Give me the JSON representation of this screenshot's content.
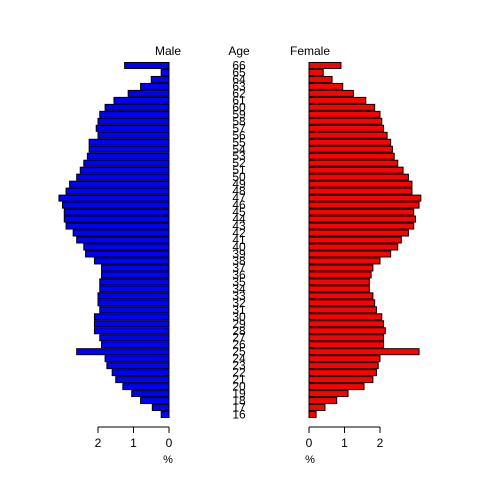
{
  "chart_data": {
    "type": "bar",
    "orientation": "horizontal",
    "left_header": "Male",
    "center_header": "Age",
    "right_header": "Female",
    "unit_label": "%",
    "xlim": [
      0,
      3
    ],
    "male_ticks": [
      2,
      1,
      0
    ],
    "female_ticks": [
      0,
      1,
      2
    ],
    "categories": [
      16,
      17,
      18,
      19,
      20,
      21,
      22,
      23,
      24,
      25,
      26,
      27,
      28,
      29,
      30,
      31,
      32,
      33,
      34,
      35,
      36,
      37,
      38,
      39,
      40,
      41,
      42,
      43,
      44,
      45,
      46,
      47,
      48,
      49,
      50,
      51,
      52,
      53,
      54,
      55,
      56,
      57,
      58,
      59,
      60,
      61,
      62,
      63,
      64,
      65,
      66
    ],
    "series": [
      {
        "name": "Male",
        "color": "#0000ff",
        "values": [
          0.22,
          0.47,
          0.8,
          1.05,
          1.3,
          1.5,
          1.6,
          1.75,
          1.8,
          2.6,
          1.9,
          1.95,
          2.1,
          2.1,
          2.1,
          1.95,
          2.0,
          2.0,
          1.95,
          1.95,
          1.9,
          1.9,
          2.1,
          2.35,
          2.4,
          2.6,
          2.7,
          2.9,
          2.95,
          2.95,
          3.0,
          3.1,
          2.9,
          2.8,
          2.6,
          2.5,
          2.4,
          2.3,
          2.25,
          2.25,
          2.0,
          2.05,
          2.0,
          1.95,
          1.8,
          1.55,
          1.15,
          0.8,
          0.5,
          0.22,
          1.25
        ]
      },
      {
        "name": "Female",
        "color": "#ff0000",
        "values": [
          0.2,
          0.45,
          0.78,
          1.1,
          1.55,
          1.8,
          1.9,
          1.95,
          2.0,
          3.1,
          2.1,
          2.1,
          2.15,
          2.1,
          2.05,
          1.9,
          1.85,
          1.8,
          1.7,
          1.7,
          1.75,
          1.8,
          2.0,
          2.3,
          2.5,
          2.6,
          2.8,
          2.95,
          3.0,
          2.95,
          3.1,
          3.15,
          2.9,
          2.9,
          2.8,
          2.65,
          2.5,
          2.4,
          2.35,
          2.3,
          2.2,
          2.1,
          2.05,
          2.0,
          1.85,
          1.6,
          1.25,
          0.95,
          0.65,
          0.4,
          0.9
        ]
      }
    ]
  }
}
